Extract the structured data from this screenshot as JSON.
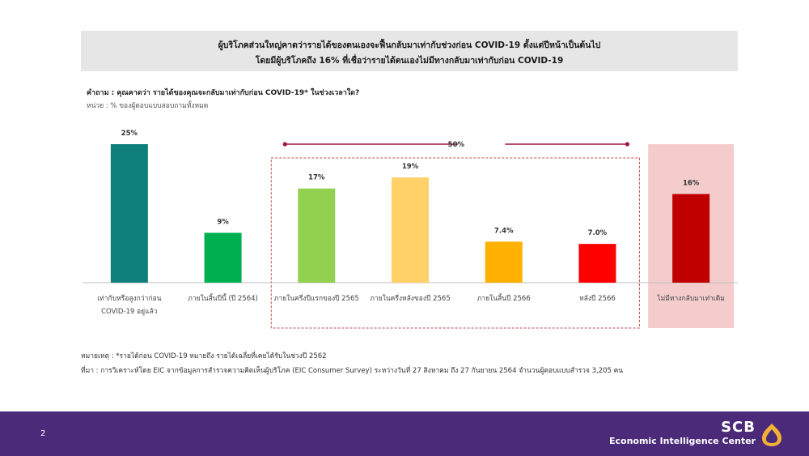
{
  "header": {
    "title_line1": "ผู้บริโภคส่วนใหญ่คาดว่ารายได้ของตนเองจะฟื้นกลับมาเท่ากับช่วงก่อน  COVID-19  ตั้งแต่ปีหน้าเป็นต้นไป",
    "title_line2": "โดยมีผู้บริโภคถึง  16%  ที่เชื่อว่ารายได้ตนเองไม่มีทางกลับมาเท่ากับก่อน   COVID-19"
  },
  "question": "คำถาม :   คุณคาดว่า รายได้ของคุณจะกลับมาเท่ากับก่อน COVID-19* ในช่วงเวลาใด?",
  "unit": "หน่วย : % ของผู้ตอบแบบสอบถามทั้งหมด",
  "chart_data": {
    "type": "bar",
    "categories": [
      [
        "เท่ากับหรือสูงกว่าก่อน",
        "COVID-19 อยู่แล้ว"
      ],
      [
        "ภายในสิ้นปีนี้ (ปี 2564)"
      ],
      [
        "ภายในครึ่งปีแรกของปี 2565"
      ],
      [
        "ภายในครึ่งหลังของปี 2565"
      ],
      [
        "ภายในสิ้นปี 2566"
      ],
      [
        "หลังปี 2566"
      ],
      [
        "ไม่มีทางกลับมาเท่าเดิม"
      ]
    ],
    "values": [
      25,
      9,
      17,
      19,
      7.4,
      7.0,
      16
    ],
    "value_labels": [
      "25%",
      "9%",
      "17%",
      "19%",
      "7.4%",
      "7.0%",
      "16%"
    ],
    "colors": [
      "#0e7f7a",
      "#00b050",
      "#92d050",
      "#ffd166",
      "#ffb000",
      "#ff0000",
      "#c00000"
    ],
    "ylim": [
      0,
      25
    ],
    "bracket_label": "50%",
    "bracket_range": [
      2,
      5
    ],
    "highlight_category": 6
  },
  "notes": {
    "remark": "หมายเหตุ : *รายได้ก่อน COVID-19 หมายถึง รายได้เฉลี่ยที่เคยได้รับในช่วงปี 2562",
    "source": "ที่มา :  การวิเคราะห์โดย EIC จากข้อมูลการสำรวจความคิดเห็นผู้บริโภค (EIC Consumer Survey) ระหว่างวันที่ 27 สิงหาคม ถึง 27 กันยายน 2564 จำนวนผู้ตอบแบบสำรวจ 3,205 คน"
  },
  "footer": {
    "page_number": "2",
    "brand_name": "SCB",
    "brand_sub": "Economic Intelligence Center"
  }
}
